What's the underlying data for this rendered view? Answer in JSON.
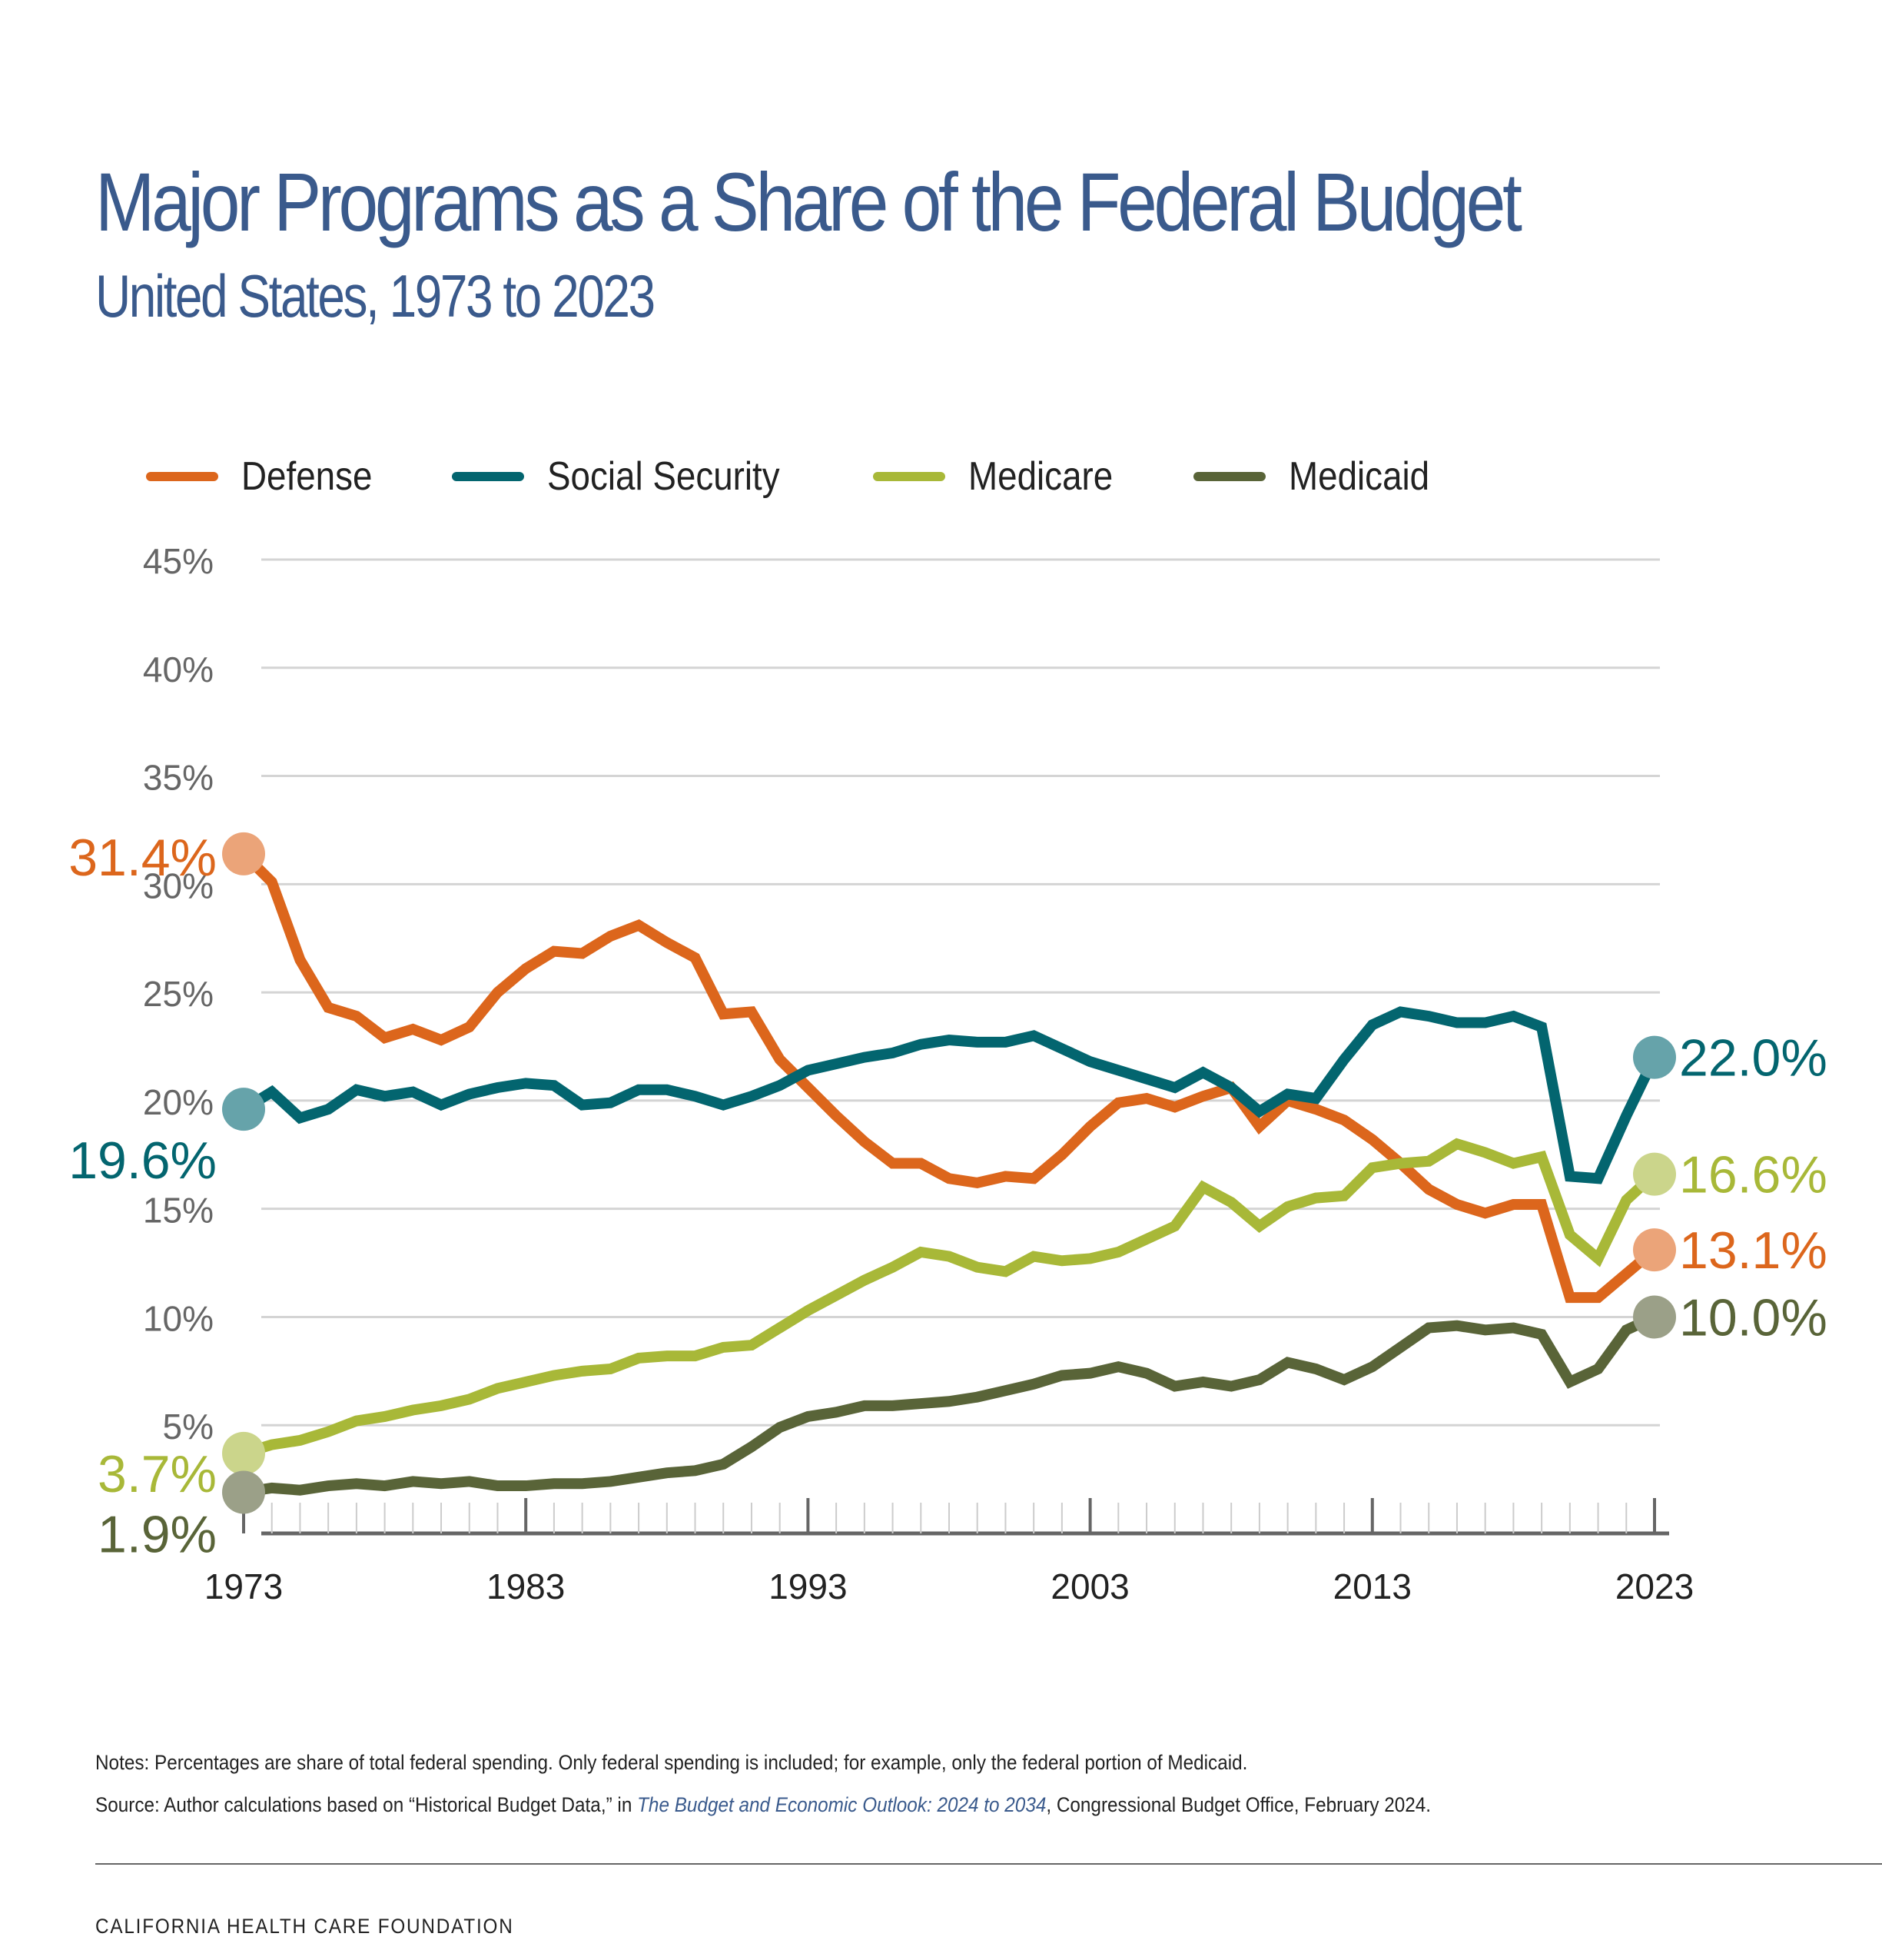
{
  "header": {
    "title": "Major Programs as a Share of the Federal Budget",
    "subtitle": "United States, 1973 to 2023"
  },
  "notes": {
    "notes_text": "Notes: Percentages are share of total federal spending. Only federal spending is included; for example, only the federal portion of Medicaid.",
    "source_prefix": "Source: Author calculations based on “Historical Budget Data,” in ",
    "source_title": "The Budget and Economic Outlook: 2024 to 2034",
    "source_suffix": ", Congressional Budget Office, February 2024."
  },
  "footer": {
    "org": "CALIFORNIA HEALTH CARE FOUNDATION"
  },
  "chart_data": {
    "type": "line",
    "title": "Major Programs as a Share of the Federal Budget",
    "subtitle": "United States, 1973 to 2023",
    "xlabel": "",
    "ylabel": "",
    "xlim": [
      1973,
      2023
    ],
    "ylim": [
      0,
      45
    ],
    "x_ticks": [
      1973,
      1983,
      1993,
      2003,
      2013,
      2023
    ],
    "y_ticks": [
      5,
      10,
      15,
      20,
      25,
      30,
      35,
      40,
      45
    ],
    "y_tick_labels": [
      "5%",
      "10%",
      "15%",
      "20%",
      "25%",
      "30%",
      "35%",
      "40%",
      "45%"
    ],
    "grid": true,
    "legend_position": "top",
    "x": [
      1973,
      1974,
      1975,
      1976,
      1977,
      1978,
      1979,
      1980,
      1981,
      1982,
      1983,
      1984,
      1985,
      1986,
      1987,
      1988,
      1989,
      1990,
      1991,
      1992,
      1993,
      1994,
      1995,
      1996,
      1997,
      1998,
      1999,
      2000,
      2001,
      2002,
      2003,
      2004,
      2005,
      2006,
      2007,
      2008,
      2009,
      2010,
      2011,
      2012,
      2013,
      2014,
      2015,
      2016,
      2017,
      2018,
      2019,
      2020,
      2021,
      2022,
      2023
    ],
    "series": [
      {
        "name": "Defense",
        "color": "#dc661c",
        "endpoint_color": "#eba479",
        "start_label": "31.4%",
        "end_label": "13.1%",
        "values": [
          31.4,
          30.1,
          26.5,
          24.3,
          23.9,
          22.9,
          23.3,
          22.8,
          23.4,
          25.0,
          26.1,
          26.9,
          26.8,
          27.6,
          28.1,
          27.3,
          26.6,
          24.0,
          24.1,
          21.9,
          20.6,
          19.3,
          18.1,
          17.1,
          17.1,
          16.4,
          16.2,
          16.5,
          16.4,
          17.5,
          18.8,
          19.9,
          20.1,
          19.7,
          20.2,
          20.6,
          18.8,
          20.0,
          19.6,
          19.1,
          18.2,
          17.1,
          15.9,
          15.2,
          14.8,
          15.2,
          15.2,
          10.9,
          10.9,
          12.0,
          13.1
        ]
      },
      {
        "name": "Social Security",
        "color": "#03656f",
        "endpoint_color": "#66a3aa",
        "start_label": "19.6%",
        "end_label": "22.0%",
        "values": [
          19.6,
          20.4,
          19.2,
          19.6,
          20.5,
          20.2,
          20.4,
          19.8,
          20.3,
          20.6,
          20.8,
          20.7,
          19.8,
          19.9,
          20.5,
          20.5,
          20.2,
          19.8,
          20.2,
          20.7,
          21.4,
          21.7,
          22.0,
          22.2,
          22.6,
          22.8,
          22.7,
          22.7,
          23.0,
          22.4,
          21.8,
          21.4,
          21.0,
          20.6,
          21.3,
          20.6,
          19.5,
          20.3,
          20.1,
          21.9,
          23.5,
          24.1,
          23.9,
          23.6,
          23.6,
          23.9,
          23.4,
          16.5,
          16.4,
          19.3,
          22.0
        ]
      },
      {
        "name": "Medicare",
        "color": "#a8b838",
        "endpoint_color": "#cbd58b",
        "start_label": "3.7%",
        "end_label": "16.6%",
        "values": [
          3.7,
          4.1,
          4.3,
          4.7,
          5.2,
          5.4,
          5.7,
          5.9,
          6.2,
          6.7,
          7.0,
          7.3,
          7.5,
          7.6,
          8.1,
          8.2,
          8.2,
          8.6,
          8.7,
          9.5,
          10.3,
          11.0,
          11.7,
          12.3,
          13.0,
          12.8,
          12.3,
          12.1,
          12.8,
          12.6,
          12.7,
          13.0,
          13.6,
          14.2,
          16.0,
          15.3,
          14.2,
          15.1,
          15.5,
          15.6,
          16.9,
          17.1,
          17.2,
          18.0,
          17.6,
          17.1,
          17.4,
          13.8,
          12.7,
          15.4,
          16.6
        ]
      },
      {
        "name": "Medicaid",
        "color": "#596438",
        "endpoint_color": "#9ba088",
        "start_label": "1.9%",
        "end_label": "10.0%",
        "values": [
          1.9,
          2.1,
          2.0,
          2.2,
          2.3,
          2.2,
          2.4,
          2.3,
          2.4,
          2.2,
          2.2,
          2.3,
          2.3,
          2.4,
          2.6,
          2.8,
          2.9,
          3.2,
          4.0,
          4.9,
          5.4,
          5.6,
          5.9,
          5.9,
          6.0,
          6.1,
          6.3,
          6.6,
          6.9,
          7.3,
          7.4,
          7.7,
          7.4,
          6.8,
          7.0,
          6.8,
          7.1,
          7.9,
          7.6,
          7.1,
          7.7,
          8.6,
          9.5,
          9.6,
          9.4,
          9.5,
          9.2,
          7.0,
          7.6,
          9.4,
          10.0
        ]
      }
    ]
  }
}
